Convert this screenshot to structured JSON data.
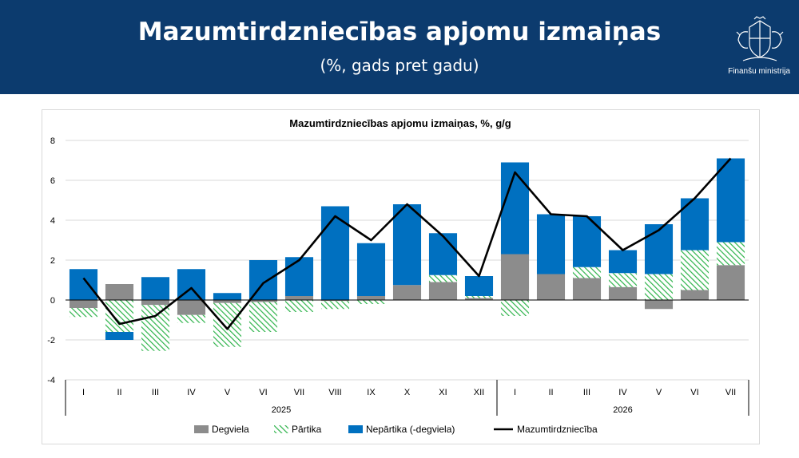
{
  "header": {
    "title": "Mazumtirdzniecības apjomu izmaiņas",
    "subtitle": "(%, gads pret gadu)",
    "org": "Finanšu ministrija"
  },
  "colors": {
    "header_bg": "#0c3b6e",
    "degviela": "#8c8c8c",
    "partika": "#2db34a",
    "nepartika": "#0070c0",
    "line": "#000000"
  },
  "chart_data": {
    "type": "bar",
    "stacked": true,
    "title": "Mazumtirdzniecības apjomu izmaiņas, %, g/g",
    "categories": [
      "I",
      "II",
      "III",
      "IV",
      "V",
      "VI",
      "VII",
      "VIII",
      "IX",
      "X",
      "XI",
      "XII",
      "I",
      "II",
      "III",
      "IV",
      "V",
      "VI",
      "VII"
    ],
    "groups": [
      {
        "label": "2025",
        "start": 0,
        "end": 11
      },
      {
        "label": "2026",
        "start": 12,
        "end": 18
      }
    ],
    "ylim": [
      -4,
      8
    ],
    "yticks": [
      "-4",
      "-2",
      "0",
      "2",
      "4",
      "6",
      "8"
    ],
    "grid": true,
    "legend_position": "bottom",
    "series": [
      {
        "name": "Degviela",
        "kind": "bar",
        "values": [
          -0.4,
          0.8,
          -0.25,
          -0.75,
          -0.15,
          -0.1,
          0.2,
          -0.05,
          0.2,
          0.75,
          0.9,
          0.1,
          2.3,
          1.3,
          1.1,
          0.65,
          -0.45,
          0.5,
          1.75
        ]
      },
      {
        "name": "Pārtika",
        "kind": "bar",
        "values": [
          -0.45,
          -1.6,
          -2.3,
          -0.4,
          -2.2,
          -1.5,
          -0.6,
          -0.4,
          -0.2,
          0.0,
          0.35,
          0.1,
          -0.8,
          0.0,
          0.55,
          0.7,
          1.3,
          2.0,
          1.15
        ]
      },
      {
        "name": "Nepārtika (-degviela)",
        "kind": "bar",
        "values": [
          1.55,
          -0.4,
          1.15,
          1.55,
          0.35,
          2.0,
          1.95,
          4.7,
          2.65,
          4.05,
          2.1,
          1.0,
          4.6,
          3.0,
          2.55,
          1.15,
          2.5,
          2.6,
          4.2
        ]
      },
      {
        "name": "Mazumtirdzniecība",
        "kind": "line",
        "values": [
          1.1,
          -1.2,
          -0.8,
          0.6,
          -1.45,
          0.85,
          2.0,
          4.2,
          3.0,
          4.8,
          3.2,
          1.2,
          6.4,
          4.3,
          4.2,
          2.5,
          3.5,
          5.1,
          7.1
        ]
      }
    ]
  }
}
